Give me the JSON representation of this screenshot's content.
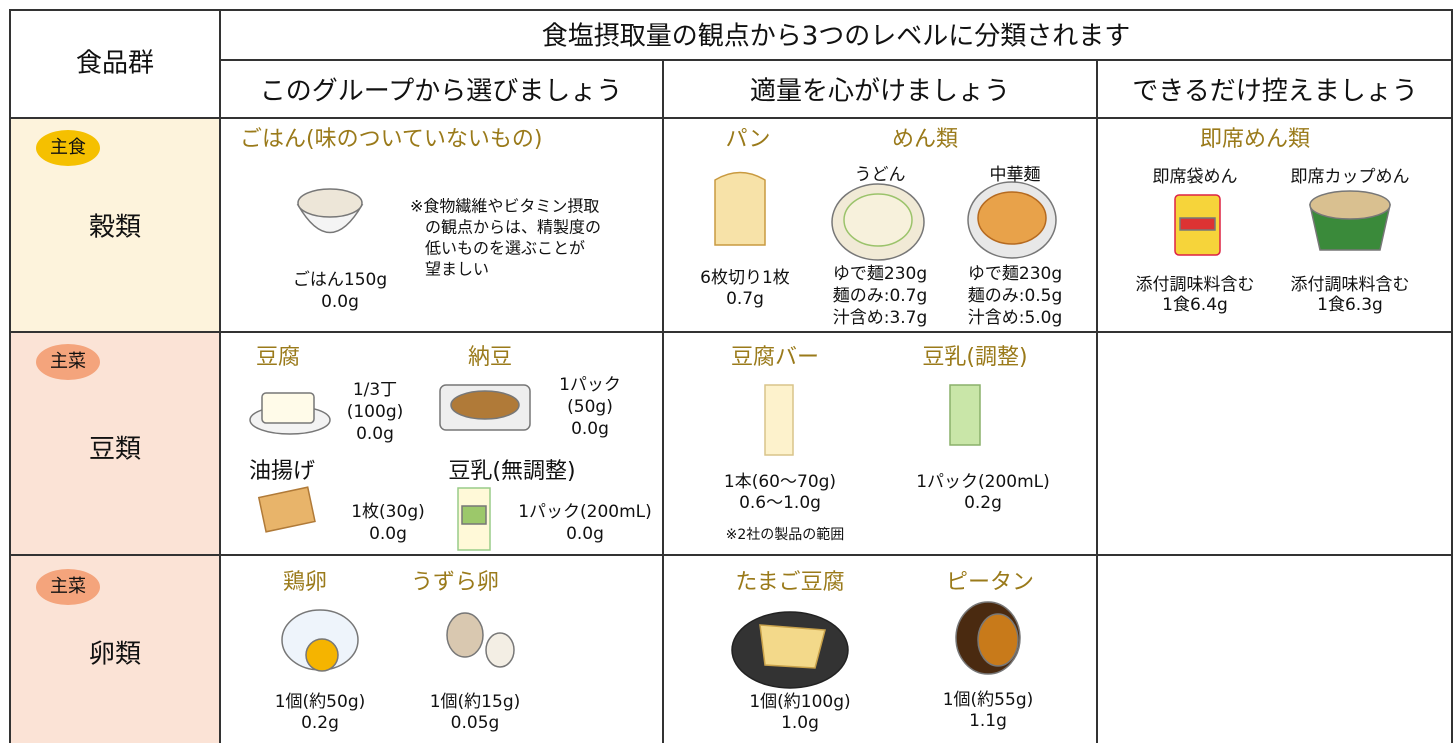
{
  "header": {
    "food_group": "食品群",
    "title": "食塩摂取量の観点から3つのレベルに分類されます",
    "levels": [
      "このグループから選びましょう",
      "適量を心がけましょう",
      "できるだけ控えましょう"
    ]
  },
  "rows": [
    {
      "badge": "主食",
      "group": "穀類",
      "choose": [
        {
          "name": "ごはん(味のついていないもの)",
          "lines": [
            "ごはん150g",
            "0.0g"
          ],
          "note": [
            "※食物繊維やビタミン摂取",
            "の観点からは、精製度の",
            "低いものを選ぶことが",
            "望ましい"
          ]
        }
      ],
      "moderate": [
        {
          "name": "パン",
          "lines": [
            "6枚切り1枚",
            "0.7g"
          ]
        },
        {
          "name": "めん類",
          "items": [
            {
              "name": "うどん",
              "lines": [
                "ゆで麺230g",
                "麺のみ:0.7g",
                "汁含め:3.7g"
              ]
            },
            {
              "name": "中華麺",
              "lines": [
                "ゆで麺230g",
                "麺のみ:0.5g",
                "汁含め:5.0g"
              ]
            }
          ]
        }
      ],
      "limit": [
        {
          "name": "即席めん類",
          "items": [
            {
              "name": "即席袋めん",
              "lines": [
                "添付調味料含む",
                "1食6.4g"
              ]
            },
            {
              "name": "即席カップめん",
              "lines": [
                "添付調味料含む",
                "1食6.3g"
              ]
            }
          ]
        }
      ]
    },
    {
      "badge": "主菜",
      "group": "豆類",
      "choose": [
        {
          "name": "豆腐",
          "lines": [
            "1/3丁",
            "(100g)",
            "0.0g"
          ]
        },
        {
          "name": "納豆",
          "lines": [
            "1パック",
            "(50g)",
            "0.0g"
          ]
        },
        {
          "name": "油揚げ",
          "lines": [
            "1枚(30g)",
            "0.0g"
          ]
        },
        {
          "name": "豆乳(無調整)",
          "lines": [
            "1パック(200mL)",
            "0.0g"
          ]
        }
      ],
      "moderate": [
        {
          "name": "豆腐バー",
          "lines": [
            "1本(60〜70g)",
            "0.6〜1.0g"
          ],
          "note": [
            "※2社の製品の範囲"
          ]
        },
        {
          "name": "豆乳(調整)",
          "lines": [
            "1パック(200mL)",
            "0.2g"
          ]
        }
      ],
      "limit": []
    },
    {
      "badge": "主菜",
      "group": "卵類",
      "choose": [
        {
          "name": "鶏卵",
          "lines": [
            "1個(約50g)",
            "0.2g"
          ]
        },
        {
          "name": "うずら卵",
          "lines": [
            "1個(約15g)",
            "0.05g"
          ]
        }
      ],
      "moderate": [
        {
          "name": "たまご豆腐",
          "lines": [
            "1個(約100g)",
            "1.0g"
          ]
        },
        {
          "name": "ピータン",
          "lines": [
            "1個(約55g)",
            "1.1g"
          ]
        }
      ],
      "limit": []
    }
  ]
}
